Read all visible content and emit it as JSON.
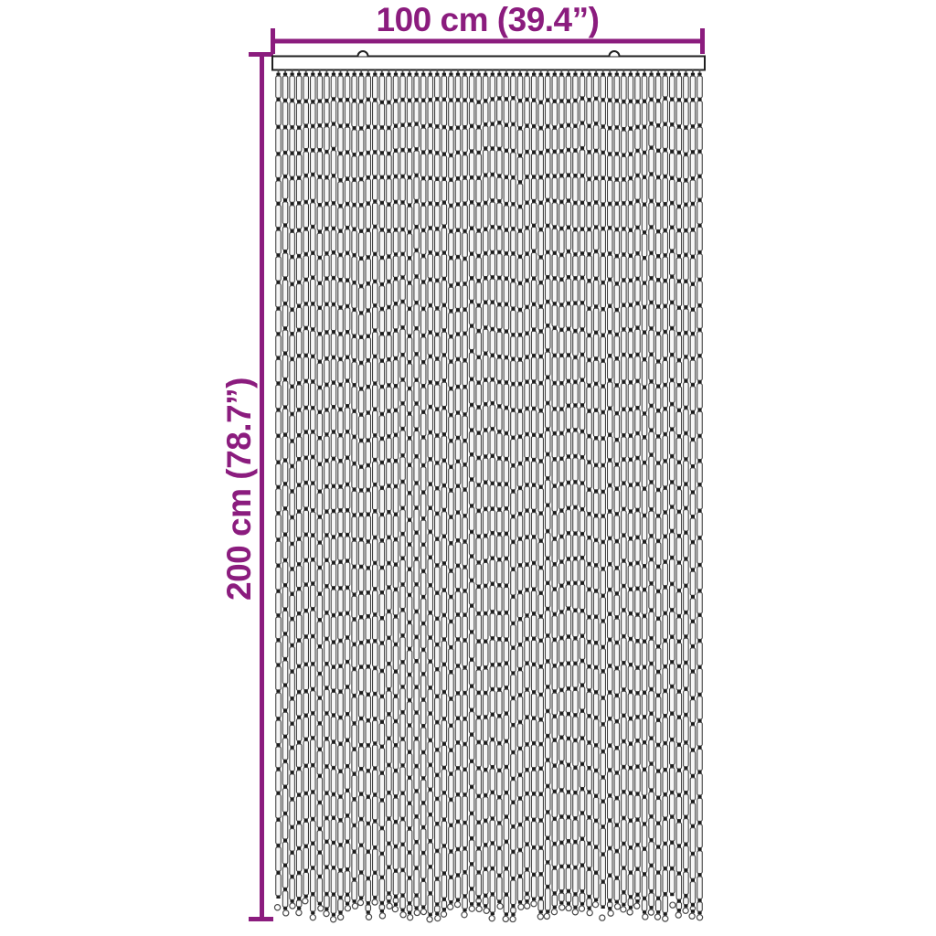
{
  "diagram": {
    "width_label": "100 cm (39.4”)",
    "height_label": "200 cm (78.7”)",
    "accent_color": "#8B1C7E",
    "figure": {
      "type": "bead-curtain-front-view",
      "strand_count": 62,
      "beads_per_strand_approx": 32,
      "hook_count": 2,
      "bead_fill": "#f6f6f6",
      "bead_stroke": "#3c3c3c",
      "connector_color": "#1c1c1c",
      "hanger_color": "#555555",
      "loop_color": "#4a4a4a",
      "rail_fill": "#ffffff",
      "rail_stroke": "#1f1f1f",
      "background": "#ffffff"
    }
  }
}
